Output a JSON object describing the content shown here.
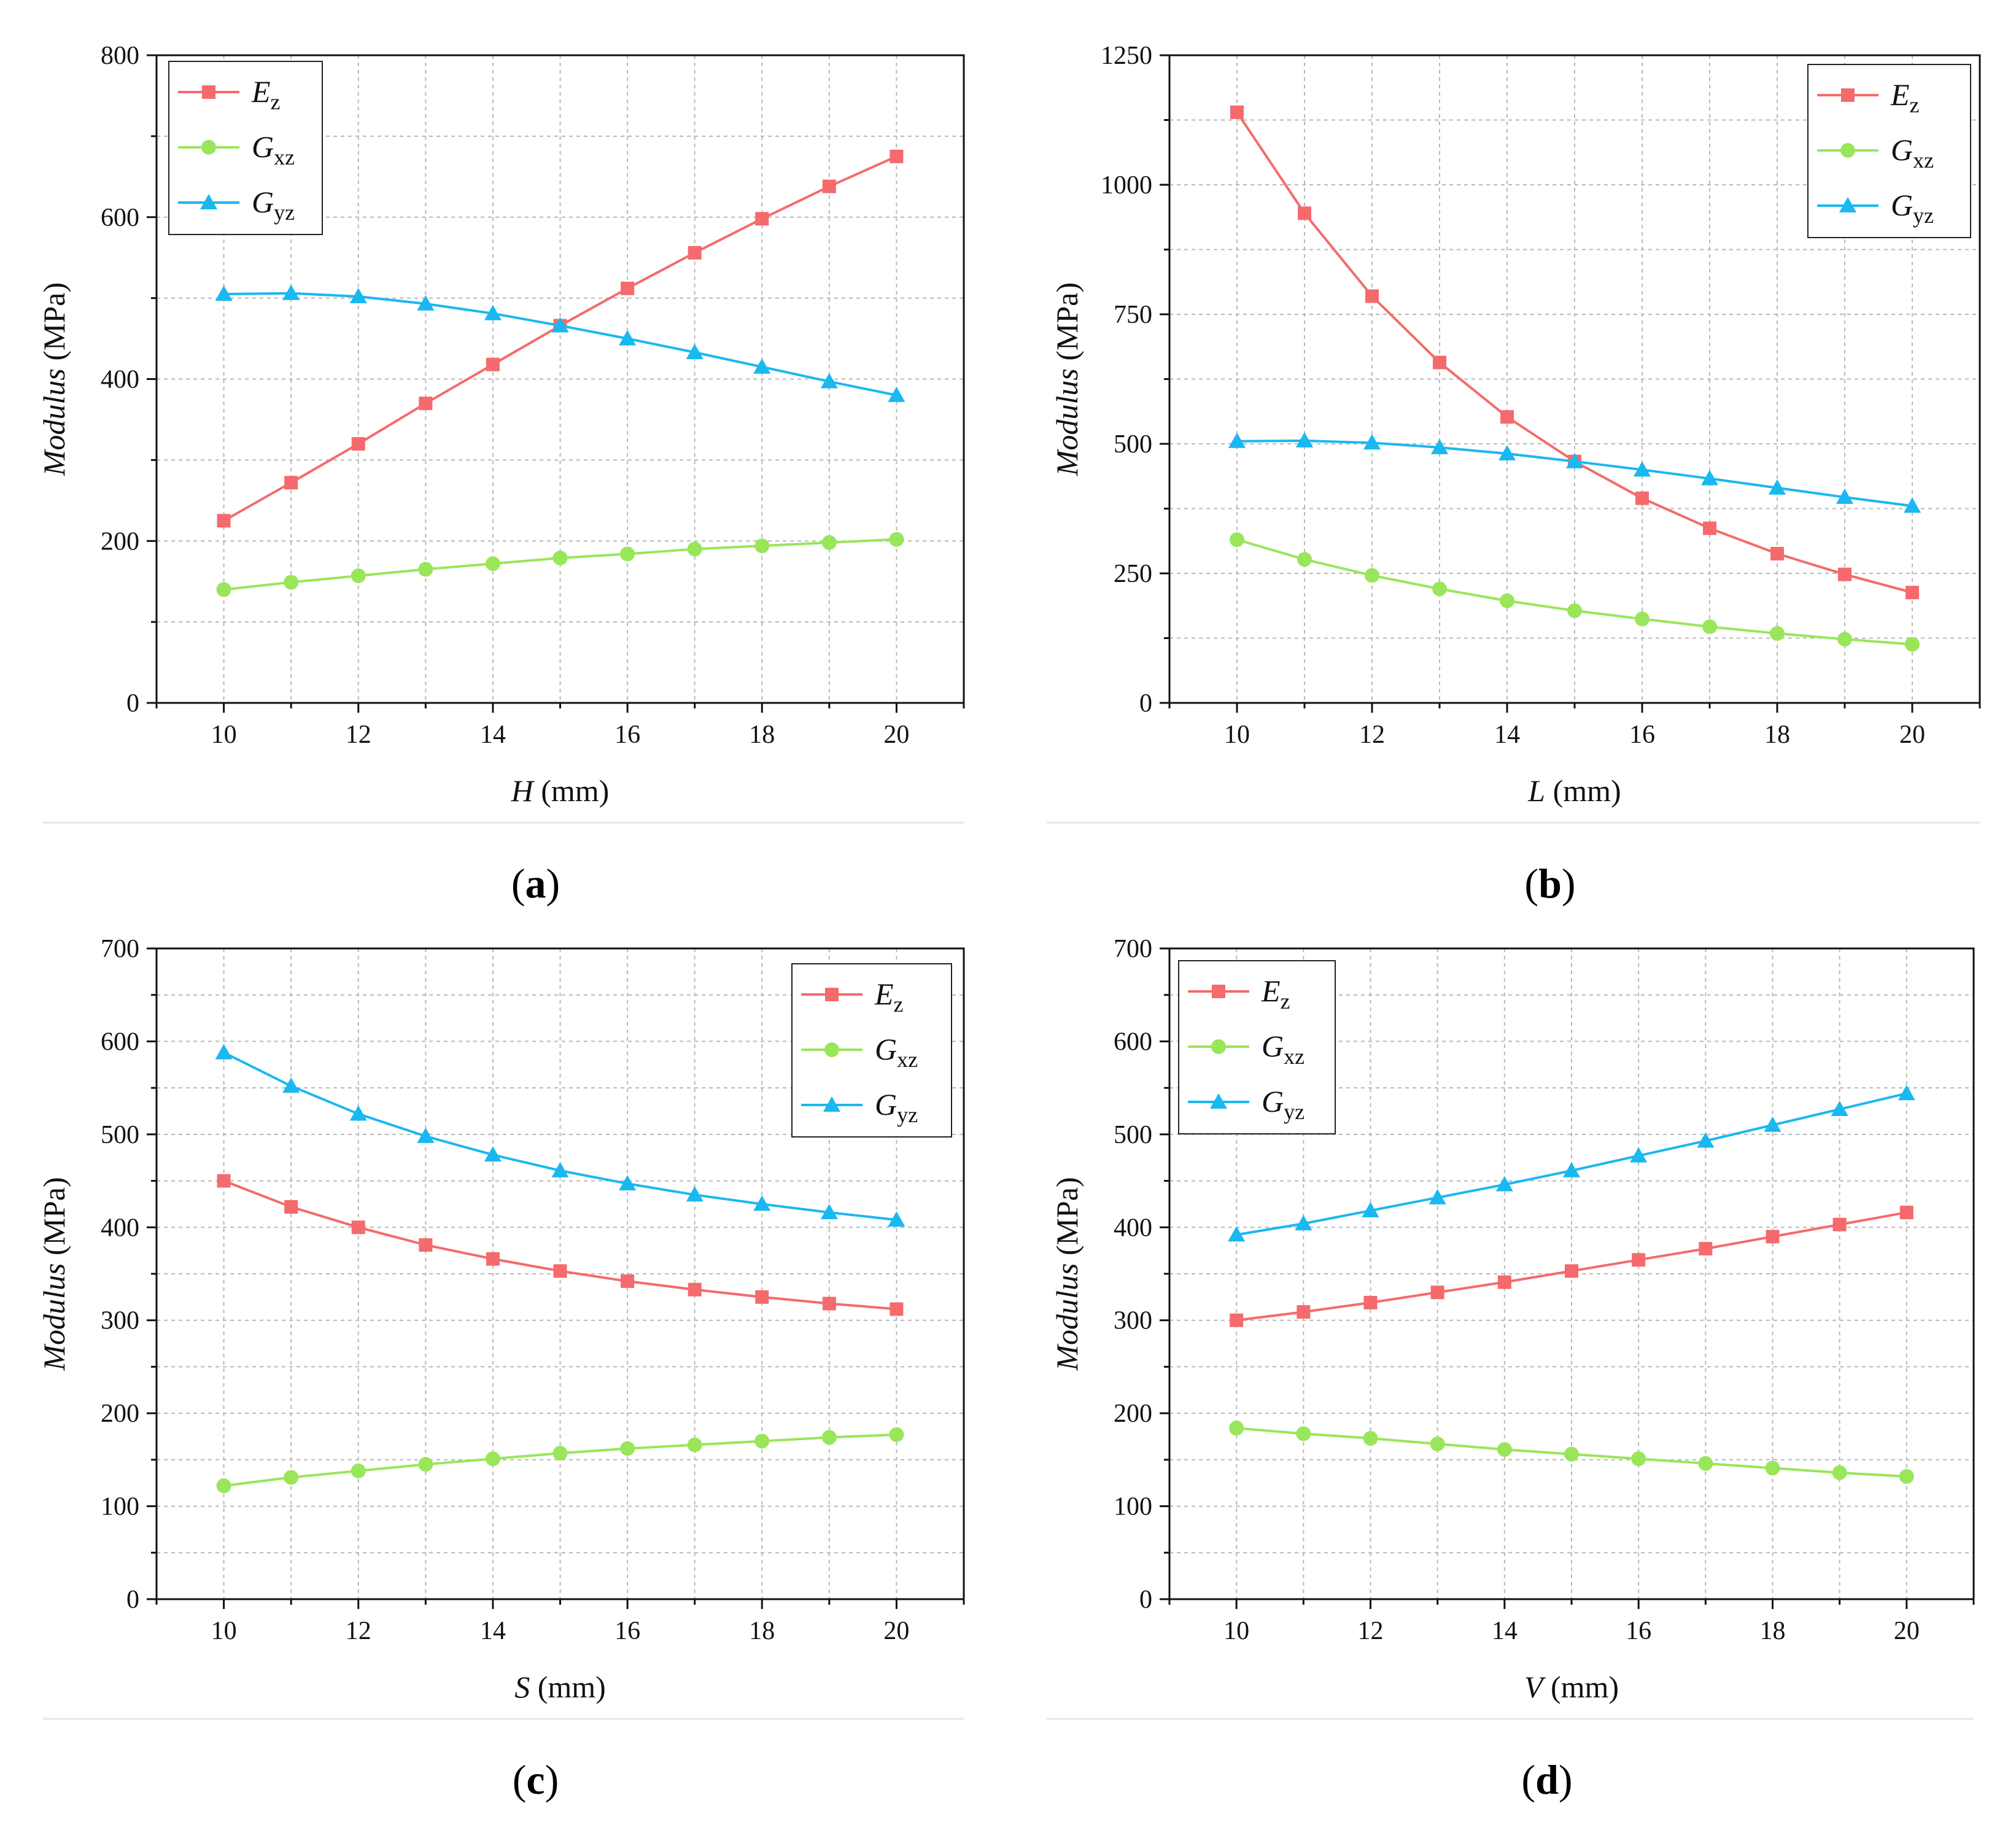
{
  "figure": {
    "panels": [
      {
        "id": "a",
        "panel_label": "a",
        "legend_position": "top-left"
      },
      {
        "id": "b",
        "panel_label": "b",
        "legend_position": "top-right"
      },
      {
        "id": "c",
        "panel_label": "c",
        "legend_position": "top-right"
      },
      {
        "id": "d",
        "panel_label": "d",
        "legend_position": "top-left"
      }
    ]
  },
  "colors": {
    "Ez": "#f56a6c",
    "Gxz": "#99e65a",
    "Gyz": "#1ab8f0"
  },
  "chart_data": [
    {
      "type": "line",
      "xlabel_var": "H",
      "xlabel_unit": "(mm)",
      "ylabel_var": "Modulus",
      "ylabel_unit": "(MPa)",
      "xlim": [
        9,
        21
      ],
      "ylim": [
        0,
        800
      ],
      "xticks": [
        10,
        12,
        14,
        16,
        18,
        20
      ],
      "yticks": [
        0,
        200,
        400,
        600,
        800
      ],
      "grid": true,
      "x": [
        10,
        11,
        12,
        13,
        14,
        15,
        16,
        17,
        18,
        19,
        20
      ],
      "series": [
        {
          "key": "Ez",
          "letter": "E",
          "sub": "z",
          "marker": "square",
          "values": [
            225,
            272,
            320,
            370,
            418,
            466,
            512,
            556,
            598,
            638,
            675
          ]
        },
        {
          "key": "Gxz",
          "letter": "G",
          "sub": "xz",
          "marker": "circle",
          "values": [
            140,
            149,
            157,
            165,
            172,
            179,
            184,
            190,
            194,
            198,
            202
          ]
        },
        {
          "key": "Gyz",
          "letter": "G",
          "sub": "yz",
          "marker": "triangle",
          "values": [
            505,
            506,
            502,
            493,
            481,
            466,
            450,
            433,
            415,
            397,
            380
          ]
        }
      ]
    },
    {
      "type": "line",
      "xlabel_var": "L",
      "xlabel_unit": "(mm)",
      "ylabel_var": "Modulus",
      "ylabel_unit": "(MPa)",
      "xlim": [
        9,
        21
      ],
      "ylim": [
        0,
        1250
      ],
      "xticks": [
        10,
        12,
        14,
        16,
        18,
        20
      ],
      "yticks": [
        0,
        250,
        500,
        750,
        1000,
        1250
      ],
      "grid": true,
      "x": [
        10,
        11,
        12,
        13,
        14,
        15,
        16,
        17,
        18,
        19,
        20
      ],
      "series": [
        {
          "key": "Ez",
          "letter": "E",
          "sub": "z",
          "marker": "square",
          "values": [
            1140,
            945,
            785,
            657,
            552,
            466,
            395,
            337,
            288,
            248,
            213
          ]
        },
        {
          "key": "Gxz",
          "letter": "G",
          "sub": "xz",
          "marker": "circle",
          "values": [
            315,
            277,
            246,
            220,
            197,
            178,
            162,
            147,
            134,
            123,
            113
          ]
        },
        {
          "key": "Gyz",
          "letter": "G",
          "sub": "yz",
          "marker": "triangle",
          "values": [
            505,
            506,
            502,
            493,
            481,
            466,
            450,
            433,
            415,
            397,
            380
          ]
        }
      ]
    },
    {
      "type": "line",
      "xlabel_var": "S",
      "xlabel_unit": "(mm)",
      "ylabel_var": "Modulus",
      "ylabel_unit": "(MPa)",
      "xlim": [
        9,
        21
      ],
      "ylim": [
        0,
        700
      ],
      "xticks": [
        10,
        12,
        14,
        16,
        18,
        20
      ],
      "yticks": [
        0,
        100,
        200,
        300,
        400,
        500,
        600,
        700
      ],
      "grid": true,
      "x": [
        10,
        11,
        12,
        13,
        14,
        15,
        16,
        17,
        18,
        19,
        20
      ],
      "series": [
        {
          "key": "Ez",
          "letter": "E",
          "sub": "z",
          "marker": "square",
          "values": [
            450,
            422,
            400,
            381,
            366,
            353,
            342,
            333,
            325,
            318,
            312
          ]
        },
        {
          "key": "Gxz",
          "letter": "G",
          "sub": "xz",
          "marker": "circle",
          "values": [
            122,
            131,
            138,
            145,
            151,
            157,
            162,
            166,
            170,
            174,
            177
          ]
        },
        {
          "key": "Gyz",
          "letter": "G",
          "sub": "yz",
          "marker": "triangle",
          "values": [
            588,
            552,
            522,
            498,
            478,
            461,
            447,
            435,
            425,
            416,
            408
          ]
        }
      ]
    },
    {
      "type": "line",
      "xlabel_var": "V",
      "xlabel_unit": "(mm)",
      "ylabel_var": "Modulus",
      "ylabel_unit": "(MPa)",
      "xlim": [
        9,
        21
      ],
      "ylim": [
        0,
        700
      ],
      "xticks": [
        10,
        12,
        14,
        16,
        18,
        20
      ],
      "yticks": [
        0,
        100,
        200,
        300,
        400,
        500,
        600,
        700
      ],
      "grid": true,
      "x": [
        10,
        11,
        12,
        13,
        14,
        15,
        16,
        17,
        18,
        19,
        20
      ],
      "series": [
        {
          "key": "Ez",
          "letter": "E",
          "sub": "z",
          "marker": "square",
          "values": [
            300,
            309,
            319,
            330,
            341,
            353,
            365,
            377,
            390,
            403,
            416
          ]
        },
        {
          "key": "Gxz",
          "letter": "G",
          "sub": "xz",
          "marker": "circle",
          "values": [
            184,
            178,
            173,
            167,
            161,
            156,
            151,
            146,
            141,
            136,
            132
          ]
        },
        {
          "key": "Gyz",
          "letter": "G",
          "sub": "yz",
          "marker": "triangle",
          "values": [
            392,
            404,
            418,
            432,
            446,
            461,
            477,
            493,
            510,
            527,
            544
          ]
        }
      ]
    }
  ]
}
